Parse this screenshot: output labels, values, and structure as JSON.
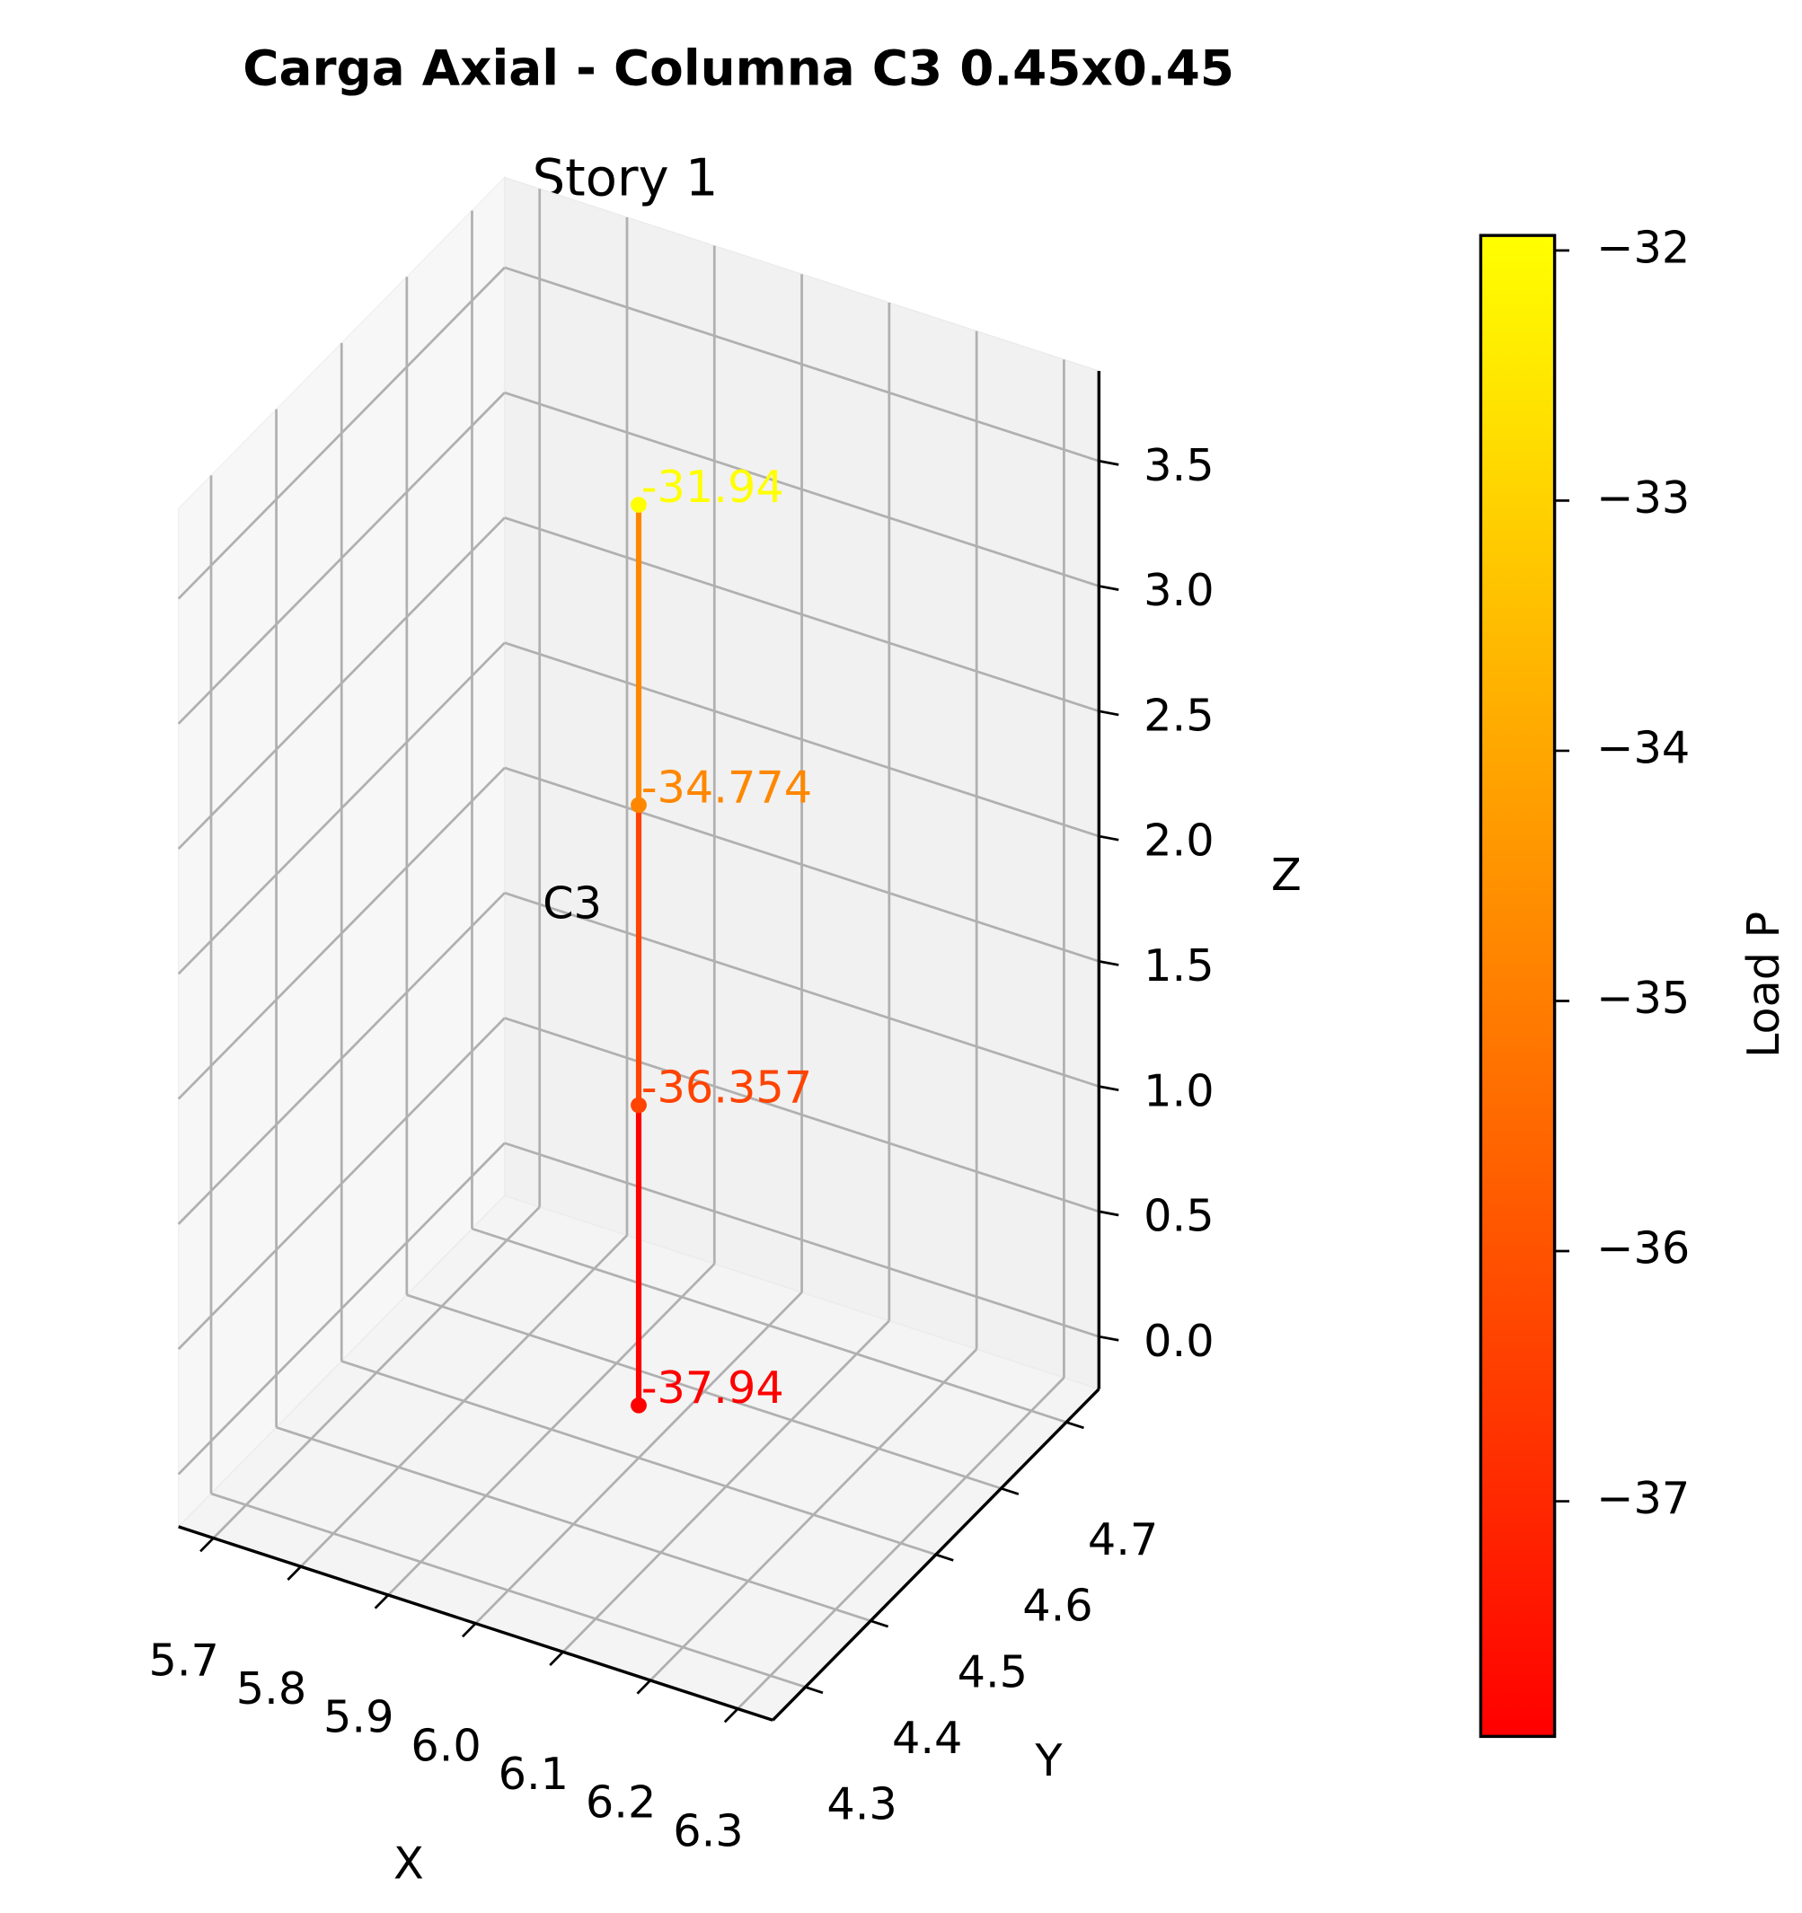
{
  "chart_data": {
    "type": "line3d",
    "title": "Carga Axial - Columna C3 0.45x0.45",
    "subtitle": "Story 1",
    "x_label": "X",
    "y_label": "Y",
    "z_label": "Z",
    "annotations": [
      "C3"
    ],
    "x": [
      6.0,
      6.0,
      6.0,
      6.0
    ],
    "y": [
      4.5,
      4.5,
      4.5,
      4.5
    ],
    "z": [
      0,
      1.2,
      2.4,
      3.6
    ],
    "values": [
      -37.94,
      -36.357,
      -34.774,
      -31.94
    ],
    "colormap": "autumn",
    "clim": [
      -37.94,
      -31.94
    ],
    "colorbar_label": "Load P",
    "colorbar_ticks": [
      {
        "value": -37,
        "label": "−37"
      },
      {
        "value": -36,
        "label": "−36"
      },
      {
        "value": -35,
        "label": "−35"
      },
      {
        "value": -34,
        "label": "−34"
      },
      {
        "value": -33,
        "label": "−33"
      },
      {
        "value": -32,
        "label": "−32"
      }
    ],
    "xlim": [
      5.66,
      6.34
    ],
    "xticks": [
      5.7,
      5.8,
      5.9,
      {
        "value": 6.0,
        "label": "6.0"
      },
      6.1,
      6.2,
      6.3
    ],
    "ylim": [
      4.25,
      4.75
    ],
    "yticks": [
      4.3,
      4.4,
      4.5,
      4.6,
      4.7
    ],
    "zlim": [
      -0.21,
      3.86
    ],
    "zticks": [
      {
        "value": 0,
        "label": "0.0"
      },
      0.5,
      {
        "value": 1,
        "label": "1.0"
      },
      1.5,
      {
        "value": 2,
        "label": "2.0"
      },
      2.5,
      {
        "value": 3,
        "label": "3.0"
      },
      3.5
    ],
    "grid": true
  }
}
